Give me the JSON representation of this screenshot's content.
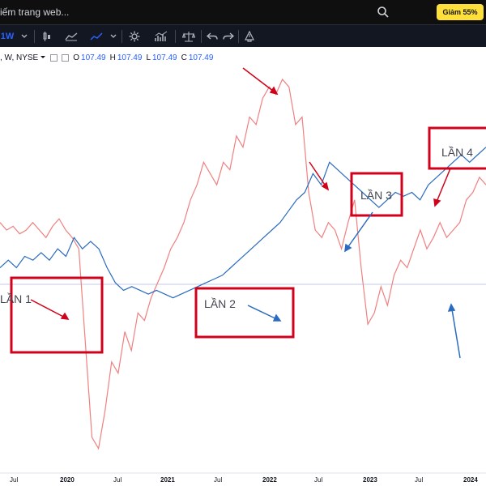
{
  "search": {
    "placeholder_text": "iếm trang web..."
  },
  "promo": {
    "label": "Giảm 55%"
  },
  "toolbar": {
    "interval_label": "1W"
  },
  "legend": {
    "symbol": ", W, NYSE",
    "open_label": "O",
    "open_value": "107.49",
    "high_label": "H",
    "high_value": "107.49",
    "low_label": "L",
    "low_value": "107.49",
    "close_label": "C",
    "close_value": "107.49"
  },
  "annotations": [
    "LẦN 1",
    "LẦN 2",
    "LẦN 3",
    "LẦN 4"
  ],
  "x_axis": [
    {
      "label": "Jul",
      "bold": false
    },
    {
      "label": "2020",
      "bold": true
    },
    {
      "label": "Jul",
      "bold": false
    },
    {
      "label": "2021",
      "bold": true
    },
    {
      "label": "Jul",
      "bold": false
    },
    {
      "label": "2022",
      "bold": true
    },
    {
      "label": "Jul",
      "bold": false
    },
    {
      "label": "2023",
      "bold": true
    },
    {
      "label": "Jul",
      "bold": false
    },
    {
      "label": "2024",
      "bold": true
    }
  ],
  "colors": {
    "red_series": "#f08080",
    "blue_series": "#2a6bbf",
    "annotation": "#d0021b"
  },
  "chart_data": {
    "type": "line",
    "series": [
      {
        "values": [
          0.62,
          0.6,
          0.61,
          0.59,
          0.6,
          0.62,
          0.6,
          0.58,
          0.61,
          0.63,
          0.6,
          0.58,
          0.55,
          0.3,
          0.05,
          0.02,
          0.12,
          0.25,
          0.22,
          0.33,
          0.28,
          0.38,
          0.36,
          0.42,
          0.46,
          0.5,
          0.55,
          0.58,
          0.62,
          0.68,
          0.72,
          0.78,
          0.75,
          0.72,
          0.78,
          0.76,
          0.85,
          0.82,
          0.9,
          0.88,
          0.95,
          0.98,
          0.96,
          1.0,
          0.98,
          0.88,
          0.9,
          0.7,
          0.6,
          0.58,
          0.62,
          0.6,
          0.55,
          0.62,
          0.68,
          0.5,
          0.35,
          0.38,
          0.45,
          0.4,
          0.48,
          0.52,
          0.5,
          0.55,
          0.6,
          0.55,
          0.58,
          0.62,
          0.58,
          0.6,
          0.62,
          0.68,
          0.7,
          0.74,
          0.72
        ]
      },
      {
        "values": [
          0.5,
          0.52,
          0.5,
          0.53,
          0.52,
          0.54,
          0.52,
          0.55,
          0.53,
          0.58,
          0.55,
          0.57,
          0.55,
          0.5,
          0.46,
          0.44,
          0.45,
          0.44,
          0.43,
          0.44,
          0.43,
          0.42,
          0.43,
          0.44,
          0.45,
          0.46,
          0.47,
          0.48,
          0.5,
          0.52,
          0.54,
          0.56,
          0.58,
          0.6,
          0.62,
          0.65,
          0.68,
          0.7,
          0.75,
          0.72,
          0.78,
          0.76,
          0.74,
          0.72,
          0.7,
          0.68,
          0.66,
          0.68,
          0.7,
          0.69,
          0.7,
          0.68,
          0.72,
          0.74,
          0.76,
          0.78,
          0.8,
          0.78,
          0.8,
          0.82
        ]
      }
    ]
  }
}
